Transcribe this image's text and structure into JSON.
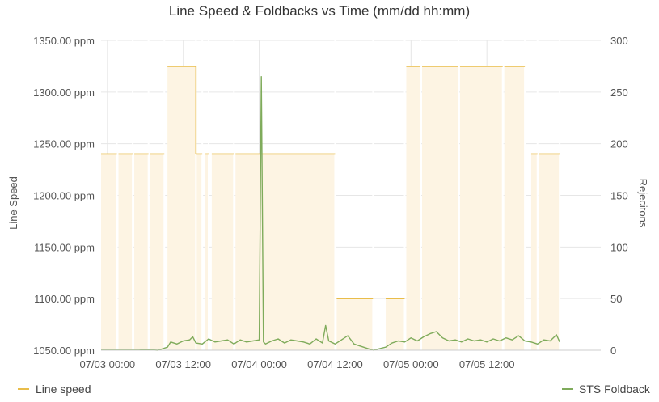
{
  "chart_data": {
    "type": "line",
    "title": "Line Speed & Foldbacks vs Time (mm/dd hh:mm)",
    "x_axis": {
      "ticks": [
        "07/03 00:00",
        "07/03 12:00",
        "07/04 00:00",
        "07/04 12:00",
        "07/05 00:00",
        "07/05 12:00"
      ],
      "range": [
        "07/02 23:00",
        "07/06 06:00"
      ]
    },
    "y_left": {
      "label": "Line Speed",
      "ticks": [
        "1050.00 ppm",
        "1100.00 ppm",
        "1150.00 ppm",
        "1200.00 ppm",
        "1250.00 ppm",
        "1300.00 ppm",
        "1350.00 ppm"
      ],
      "range": [
        1050,
        1350
      ],
      "unit": "ppm"
    },
    "y_right": {
      "label": "Rejecitons",
      "ticks": [
        "0",
        "50",
        "100",
        "150",
        "200",
        "250",
        "300"
      ],
      "range": [
        0,
        300
      ]
    },
    "grid": true,
    "series": [
      {
        "name": "Line speed",
        "color": "#e9bd4a",
        "fill": "#fdf4e3",
        "axis": "left",
        "segments": [
          {
            "start": "07/02 23:00",
            "end": "07/03 01:30",
            "value": 1240
          },
          {
            "start": "07/03 01:45",
            "end": "07/03 04:00",
            "value": 1240
          },
          {
            "start": "07/03 04:15",
            "end": "07/03 06:30",
            "value": 1240
          },
          {
            "start": "07/03 06:45",
            "end": "07/03 09:00",
            "value": 1240
          },
          {
            "start": "07/03 09:30",
            "end": "07/03 14:00",
            "value": 1325
          },
          {
            "start": "07/03 14:00",
            "end": "07/03 15:00",
            "value": 1240
          },
          {
            "start": "07/03 15:30",
            "end": "07/03 16:00",
            "value": 1240
          },
          {
            "start": "07/03 16:30",
            "end": "07/03 20:00",
            "value": 1240
          },
          {
            "start": "07/03 20:15",
            "end": "07/04 12:00",
            "value": 1240
          },
          {
            "start": "07/04 12:15",
            "end": "07/04 18:00",
            "value": 1100
          },
          {
            "start": "07/04 20:00",
            "end": "07/04 23:00",
            "value": 1100
          },
          {
            "start": "07/04 23:15",
            "end": "07/05 01:30",
            "value": 1325
          },
          {
            "start": "07/05 01:45",
            "end": "07/05 07:30",
            "value": 1325
          },
          {
            "start": "07/05 07:45",
            "end": "07/05 14:30",
            "value": 1325
          },
          {
            "start": "07/05 14:45",
            "end": "07/05 18:00",
            "value": 1325
          },
          {
            "start": "07/05 19:00",
            "end": "07/05 20:00",
            "value": 1240
          },
          {
            "start": "07/05 20:15",
            "end": "07/05 23:30",
            "value": 1240
          }
        ],
        "fill_gaps": [
          "07/04 11:30",
          "07/04 18:00"
        ]
      },
      {
        "name": "STS Foldback",
        "color": "#7fab5b",
        "axis": "right",
        "points": [
          [
            "07/02 23:00",
            1
          ],
          [
            "07/03 02:00",
            1
          ],
          [
            "07/03 05:00",
            1
          ],
          [
            "07/03 08:00",
            0
          ],
          [
            "07/03 09:30",
            3
          ],
          [
            "07/03 10:00",
            8
          ],
          [
            "07/03 11:00",
            6
          ],
          [
            "07/03 12:00",
            9
          ],
          [
            "07/03 13:00",
            10
          ],
          [
            "07/03 13:30",
            13
          ],
          [
            "07/03 14:00",
            7
          ],
          [
            "07/03 15:00",
            6
          ],
          [
            "07/03 16:00",
            11
          ],
          [
            "07/03 17:00",
            8
          ],
          [
            "07/03 18:00",
            9
          ],
          [
            "07/03 19:00",
            10
          ],
          [
            "07/03 20:00",
            6
          ],
          [
            "07/03 21:00",
            10
          ],
          [
            "07/03 22:00",
            8
          ],
          [
            "07/03 23:00",
            9
          ],
          [
            "07/04 00:00",
            10
          ],
          [
            "07/04 00:20",
            265
          ],
          [
            "07/04 00:40",
            8
          ],
          [
            "07/04 01:00",
            6
          ],
          [
            "07/04 02:00",
            9
          ],
          [
            "07/04 03:00",
            11
          ],
          [
            "07/04 04:00",
            7
          ],
          [
            "07/04 05:00",
            10
          ],
          [
            "07/04 06:00",
            9
          ],
          [
            "07/04 07:00",
            8
          ],
          [
            "07/04 08:00",
            6
          ],
          [
            "07/04 09:00",
            11
          ],
          [
            "07/04 10:00",
            7
          ],
          [
            "07/04 10:30",
            24
          ],
          [
            "07/04 11:00",
            9
          ],
          [
            "07/04 12:00",
            6
          ],
          [
            "07/04 13:00",
            10
          ],
          [
            "07/04 14:00",
            14
          ],
          [
            "07/04 15:00",
            6
          ],
          [
            "07/04 16:00",
            4
          ],
          [
            "07/04 18:00",
            0
          ],
          [
            "07/04 20:00",
            3
          ],
          [
            "07/04 21:00",
            7
          ],
          [
            "07/04 22:00",
            9
          ],
          [
            "07/04 23:00",
            8
          ],
          [
            "07/05 00:00",
            12
          ],
          [
            "07/05 01:00",
            9
          ],
          [
            "07/05 02:00",
            13
          ],
          [
            "07/05 03:00",
            16
          ],
          [
            "07/05 04:00",
            18
          ],
          [
            "07/05 05:00",
            12
          ],
          [
            "07/05 06:00",
            9
          ],
          [
            "07/05 07:00",
            10
          ],
          [
            "07/05 08:00",
            8
          ],
          [
            "07/05 09:00",
            11
          ],
          [
            "07/05 10:00",
            9
          ],
          [
            "07/05 11:00",
            10
          ],
          [
            "07/05 12:00",
            8
          ],
          [
            "07/05 13:00",
            11
          ],
          [
            "07/05 14:00",
            9
          ],
          [
            "07/05 15:00",
            12
          ],
          [
            "07/05 16:00",
            10
          ],
          [
            "07/05 17:00",
            14
          ],
          [
            "07/05 18:00",
            9
          ],
          [
            "07/05 19:00",
            8
          ],
          [
            "07/05 20:00",
            6
          ],
          [
            "07/05 21:00",
            10
          ],
          [
            "07/05 22:00",
            9
          ],
          [
            "07/05 23:00",
            15
          ],
          [
            "07/05 23:30",
            8
          ]
        ]
      }
    ],
    "legend": {
      "placement": "bottom",
      "items": [
        {
          "label": "Line speed",
          "color": "#e9bd4a",
          "side": "left"
        },
        {
          "label": "STS Foldback",
          "color": "#7fab5b",
          "side": "right"
        }
      ]
    }
  }
}
